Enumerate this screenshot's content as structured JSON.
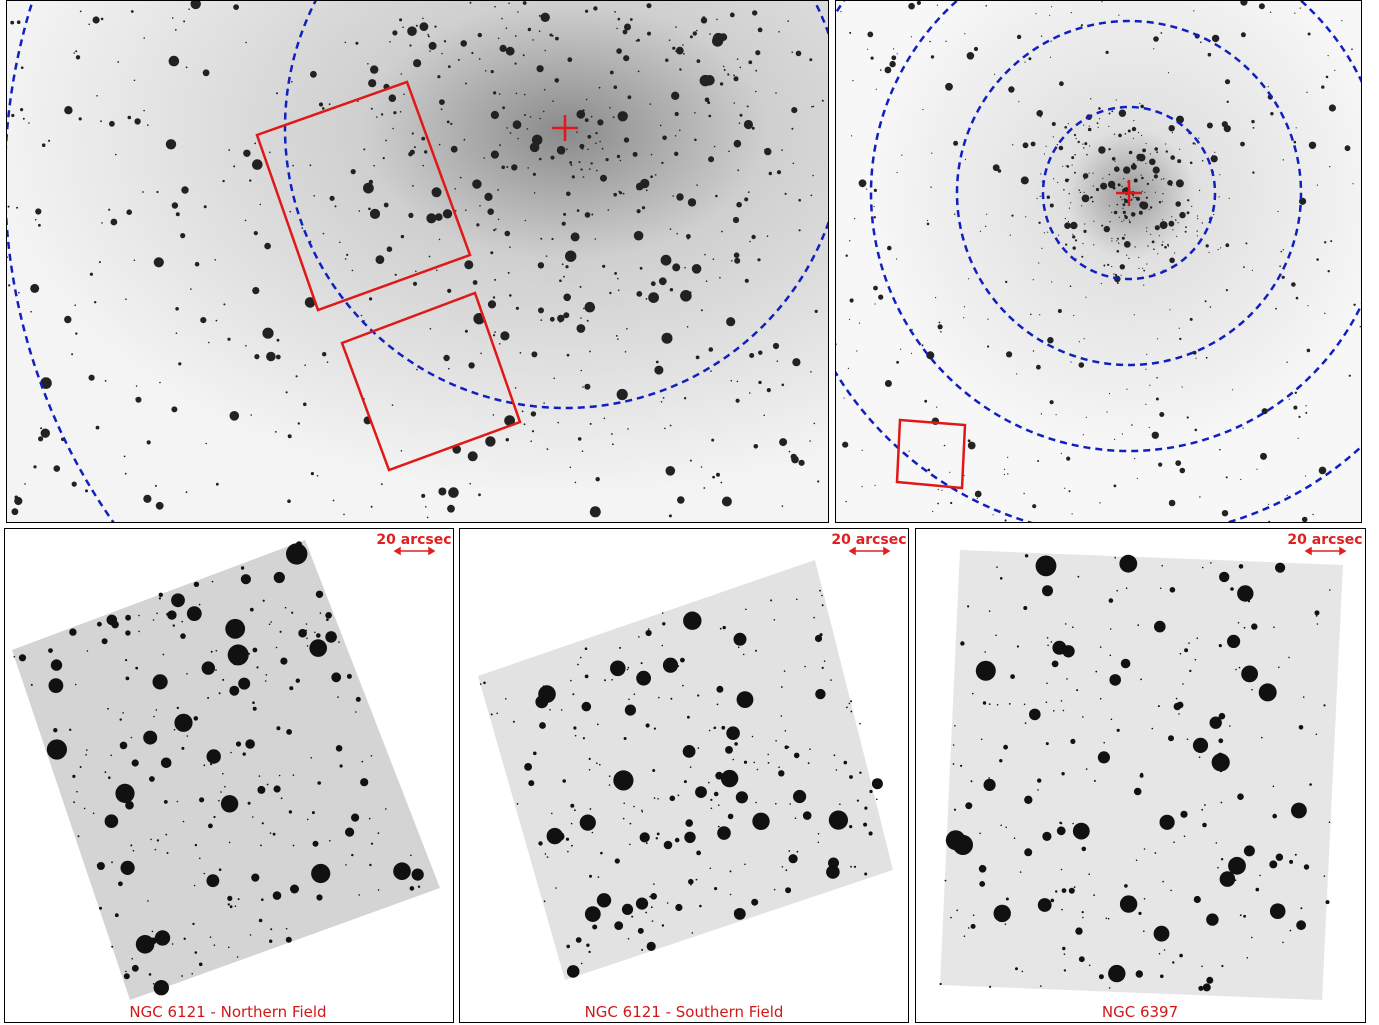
{
  "panels": [
    {
      "scale_label": "20 arcsec",
      "caption": "NGC 6121 - Northern Field"
    },
    {
      "scale_label": "20 arcsec",
      "caption": "NGC 6121 - Southern Field"
    },
    {
      "scale_label": "20 arcsec",
      "caption": "NGC 6397"
    }
  ]
}
